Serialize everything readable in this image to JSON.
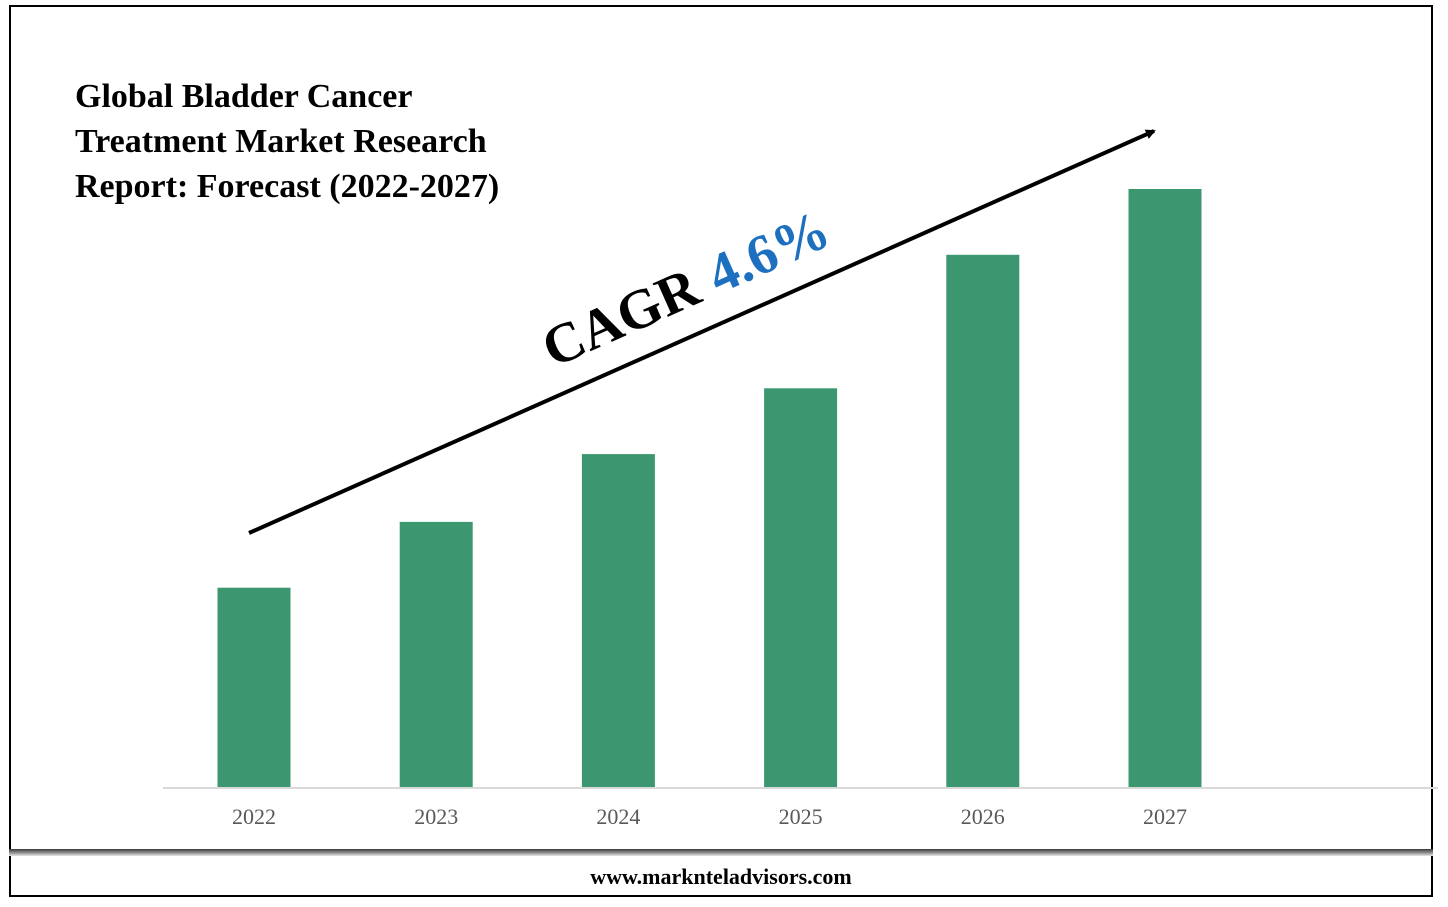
{
  "chart_data": {
    "type": "bar",
    "title": "Global Bladder Cancer Treatment Market Research Report: Forecast (2022-2027)",
    "title_lines": [
      "Global Bladder Cancer",
      "Treatment Market Research",
      "Report: Forecast (2022-2027)"
    ],
    "categories": [
      "2022",
      "2023",
      "2024",
      "2025",
      "2026",
      "2027"
    ],
    "values": [
      1.0,
      1.33,
      1.67,
      2.0,
      2.67,
      3.0
    ],
    "xlabel": "",
    "ylabel": "",
    "ylim": [
      0,
      3.0
    ],
    "grid": false,
    "legend": "none",
    "bar_color": "#3c9770",
    "annotation": {
      "label": "CAGR",
      "value": "4.6%",
      "label_color": "#000000",
      "value_color": "#1d6fbf"
    }
  },
  "footer": {
    "website": "www.marknteladvisors.com"
  }
}
